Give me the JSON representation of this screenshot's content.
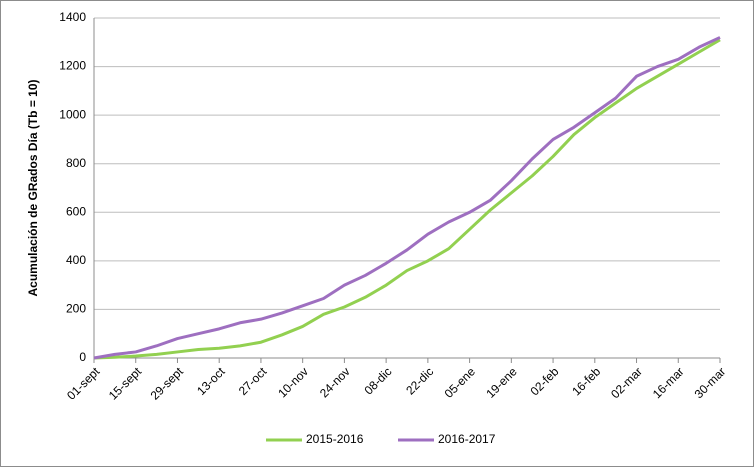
{
  "chart_data": {
    "type": "line",
    "y_label": "Acumulación de GRados Día (Tb = 10)",
    "categories": [
      "01-sept",
      null,
      "15-sept",
      null,
      "29-sept",
      null,
      "13-oct",
      null,
      "27-oct",
      null,
      "10-nov",
      null,
      "24-nov",
      null,
      "08-dic",
      null,
      "22-dic",
      null,
      "05-ene",
      null,
      "19-ene",
      null,
      "02-feb",
      null,
      "16-feb",
      null,
      "02-mar",
      null,
      "16-mar",
      null,
      "30-mar"
    ],
    "series": [
      {
        "name": "2015-2016",
        "color": "#92d050",
        "values": [
          0,
          3,
          8,
          15,
          25,
          35,
          40,
          50,
          65,
          95,
          130,
          180,
          210,
          250,
          300,
          360,
          400,
          450,
          530,
          610,
          680,
          750,
          830,
          920,
          990,
          1050,
          1110,
          1160,
          1210,
          1260,
          1310
        ]
      },
      {
        "name": "2016-2017",
        "color": "#9e6fc0",
        "values": [
          0,
          15,
          25,
          50,
          80,
          100,
          120,
          145,
          160,
          185,
          215,
          245,
          300,
          340,
          390,
          445,
          510,
          560,
          600,
          650,
          730,
          820,
          900,
          950,
          1010,
          1070,
          1160,
          1200,
          1230,
          1280,
          1320
        ]
      }
    ],
    "ylim": [
      0,
      1400
    ],
    "yticks": [
      0,
      200,
      400,
      600,
      800,
      1000,
      1200,
      1400
    ],
    "grid": true,
    "legend": "bottom"
  }
}
